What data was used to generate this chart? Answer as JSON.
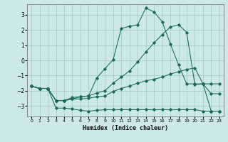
{
  "xlabel": "Humidex (Indice chaleur)",
  "background_color": "#cce8e8",
  "grid_color": "#aacccc",
  "line_color": "#1a6b5a",
  "xlim": [
    -0.5,
    23.5
  ],
  "ylim": [
    -3.7,
    3.7
  ],
  "xticks": [
    0,
    1,
    2,
    3,
    4,
    5,
    6,
    7,
    8,
    9,
    10,
    11,
    12,
    13,
    14,
    15,
    16,
    17,
    18,
    19,
    20,
    21,
    22,
    23
  ],
  "yticks": [
    -3,
    -2,
    -1,
    0,
    1,
    2,
    3
  ],
  "line1_x": [
    0,
    1,
    2,
    3,
    4,
    5,
    6,
    7,
    8,
    9,
    10,
    11,
    12,
    13,
    14,
    15,
    16,
    17,
    18,
    19,
    20,
    21,
    22,
    23
  ],
  "line1_y": [
    -1.7,
    -1.85,
    -1.85,
    -3.15,
    -3.15,
    -3.2,
    -3.3,
    -3.35,
    -3.3,
    -3.25,
    -3.25,
    -3.25,
    -3.25,
    -3.25,
    -3.25,
    -3.25,
    -3.25,
    -3.25,
    -3.25,
    -3.25,
    -3.25,
    -3.35,
    -3.35,
    -3.35
  ],
  "line2_x": [
    0,
    1,
    2,
    3,
    4,
    5,
    6,
    7,
    8,
    9,
    10,
    11,
    12,
    13,
    14,
    15,
    16,
    17,
    18,
    19,
    20,
    21,
    22,
    23
  ],
  "line2_y": [
    -1.7,
    -1.85,
    -1.85,
    -2.65,
    -2.65,
    -2.55,
    -2.55,
    -2.5,
    -2.4,
    -2.35,
    -2.05,
    -1.85,
    -1.7,
    -1.5,
    -1.35,
    -1.25,
    -1.1,
    -0.9,
    -0.75,
    -0.6,
    -0.5,
    -1.55,
    -1.55,
    -1.55
  ],
  "line3_x": [
    0,
    1,
    2,
    3,
    4,
    5,
    6,
    7,
    8,
    9,
    10,
    11,
    12,
    13,
    14,
    15,
    16,
    17,
    18,
    19,
    20,
    21,
    22,
    23
  ],
  "line3_y": [
    -1.7,
    -1.85,
    -1.85,
    -2.65,
    -2.65,
    -2.55,
    -2.4,
    -2.35,
    -2.15,
    -2.0,
    -1.5,
    -1.1,
    -0.7,
    -0.1,
    0.55,
    1.15,
    1.7,
    2.2,
    2.35,
    1.85,
    -1.6,
    -1.55,
    -2.2,
    -2.2
  ],
  "line4_x": [
    0,
    1,
    2,
    3,
    4,
    5,
    6,
    7,
    8,
    9,
    10,
    11,
    12,
    13,
    14,
    15,
    16,
    17,
    18,
    19,
    20,
    21,
    22,
    23
  ],
  "line4_y": [
    -1.7,
    -1.85,
    -1.85,
    -2.65,
    -2.65,
    -2.45,
    -2.4,
    -2.35,
    -1.15,
    -0.55,
    0.05,
    2.1,
    2.25,
    2.35,
    3.45,
    3.2,
    2.55,
    1.1,
    -0.3,
    -1.55,
    -1.55,
    -1.55,
    -3.35,
    -3.35
  ]
}
